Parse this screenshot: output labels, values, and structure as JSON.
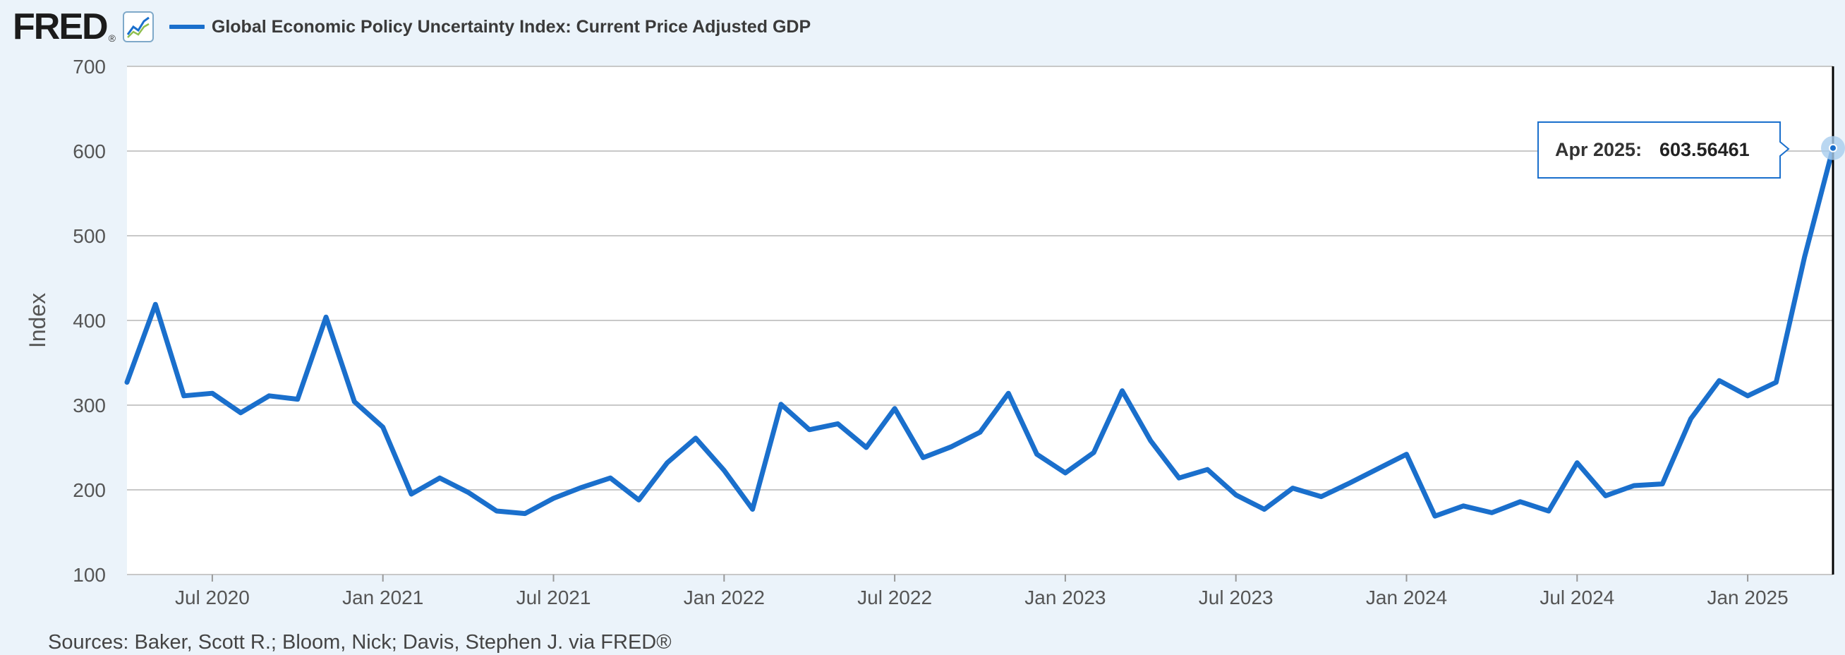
{
  "header": {
    "logo_text": "FRED",
    "logo_mark": "®",
    "graph_icon": "line-graph-icon",
    "legend_label": "Global Economic Policy Uncertainty Index: Current Price Adjusted GDP"
  },
  "tooltip": {
    "label": "Apr 2025:",
    "value": "603.56461"
  },
  "source": "Sources: Baker, Scott R.; Bloom, Nick; Davis, Stephen J. via FRED®",
  "colors": {
    "series": "#1a6fcc",
    "background": "#ebf3fa",
    "plot": "#ffffff",
    "grid": "#c8c8c8"
  },
  "chart_data": {
    "type": "line",
    "title": "Global Economic Policy Uncertainty Index: Current Price Adjusted GDP",
    "ylabel": "Index",
    "xlabel": "",
    "ylim": [
      100,
      700
    ],
    "xlim": [
      "2020-04",
      "2025-04"
    ],
    "yticks": [
      100,
      200,
      300,
      400,
      500,
      600,
      700
    ],
    "xticks": [
      {
        "date": "2020-07",
        "label": "Jul 2020"
      },
      {
        "date": "2021-01",
        "label": "Jan 2021"
      },
      {
        "date": "2021-07",
        "label": "Jul 2021"
      },
      {
        "date": "2022-01",
        "label": "Jan 2022"
      },
      {
        "date": "2022-07",
        "label": "Jul 2022"
      },
      {
        "date": "2023-01",
        "label": "Jan 2023"
      },
      {
        "date": "2023-07",
        "label": "Jul 2023"
      },
      {
        "date": "2024-01",
        "label": "Jan 2024"
      },
      {
        "date": "2024-07",
        "label": "Jul 2024"
      },
      {
        "date": "2025-01",
        "label": "Jan 2025"
      }
    ],
    "grid": true,
    "series": [
      {
        "name": "Global Economic Policy Uncertainty Index: Current Price Adjusted GDP",
        "x": [
          "2020-04",
          "2020-05",
          "2020-06",
          "2020-07",
          "2020-08",
          "2020-09",
          "2020-10",
          "2020-11",
          "2020-12",
          "2021-01",
          "2021-02",
          "2021-03",
          "2021-04",
          "2021-05",
          "2021-06",
          "2021-07",
          "2021-08",
          "2021-09",
          "2021-10",
          "2021-11",
          "2021-12",
          "2022-01",
          "2022-02",
          "2022-03",
          "2022-04",
          "2022-05",
          "2022-06",
          "2022-07",
          "2022-08",
          "2022-09",
          "2022-10",
          "2022-11",
          "2022-12",
          "2023-01",
          "2023-02",
          "2023-03",
          "2023-04",
          "2023-05",
          "2023-06",
          "2023-07",
          "2023-08",
          "2023-09",
          "2023-10",
          "2023-11",
          "2023-12",
          "2024-01",
          "2024-02",
          "2024-03",
          "2024-04",
          "2024-05",
          "2024-06",
          "2024-07",
          "2024-08",
          "2024-09",
          "2024-10",
          "2024-11",
          "2024-12",
          "2025-01",
          "2025-02",
          "2025-03",
          "2025-04"
        ],
        "values": [
          327,
          419,
          311,
          314,
          291,
          311,
          307,
          404,
          304,
          274,
          195,
          214,
          197,
          175,
          172,
          190,
          203,
          214,
          188,
          232,
          261,
          223,
          177,
          301,
          271,
          278,
          250,
          296,
          238,
          251,
          268,
          314,
          242,
          220,
          244,
          317,
          258,
          214,
          224,
          194,
          177,
          202,
          192,
          208,
          225,
          242,
          169,
          181,
          173,
          186,
          175,
          232,
          193,
          205,
          207,
          284,
          329,
          311,
          327,
          475,
          603.56461
        ]
      }
    ]
  }
}
